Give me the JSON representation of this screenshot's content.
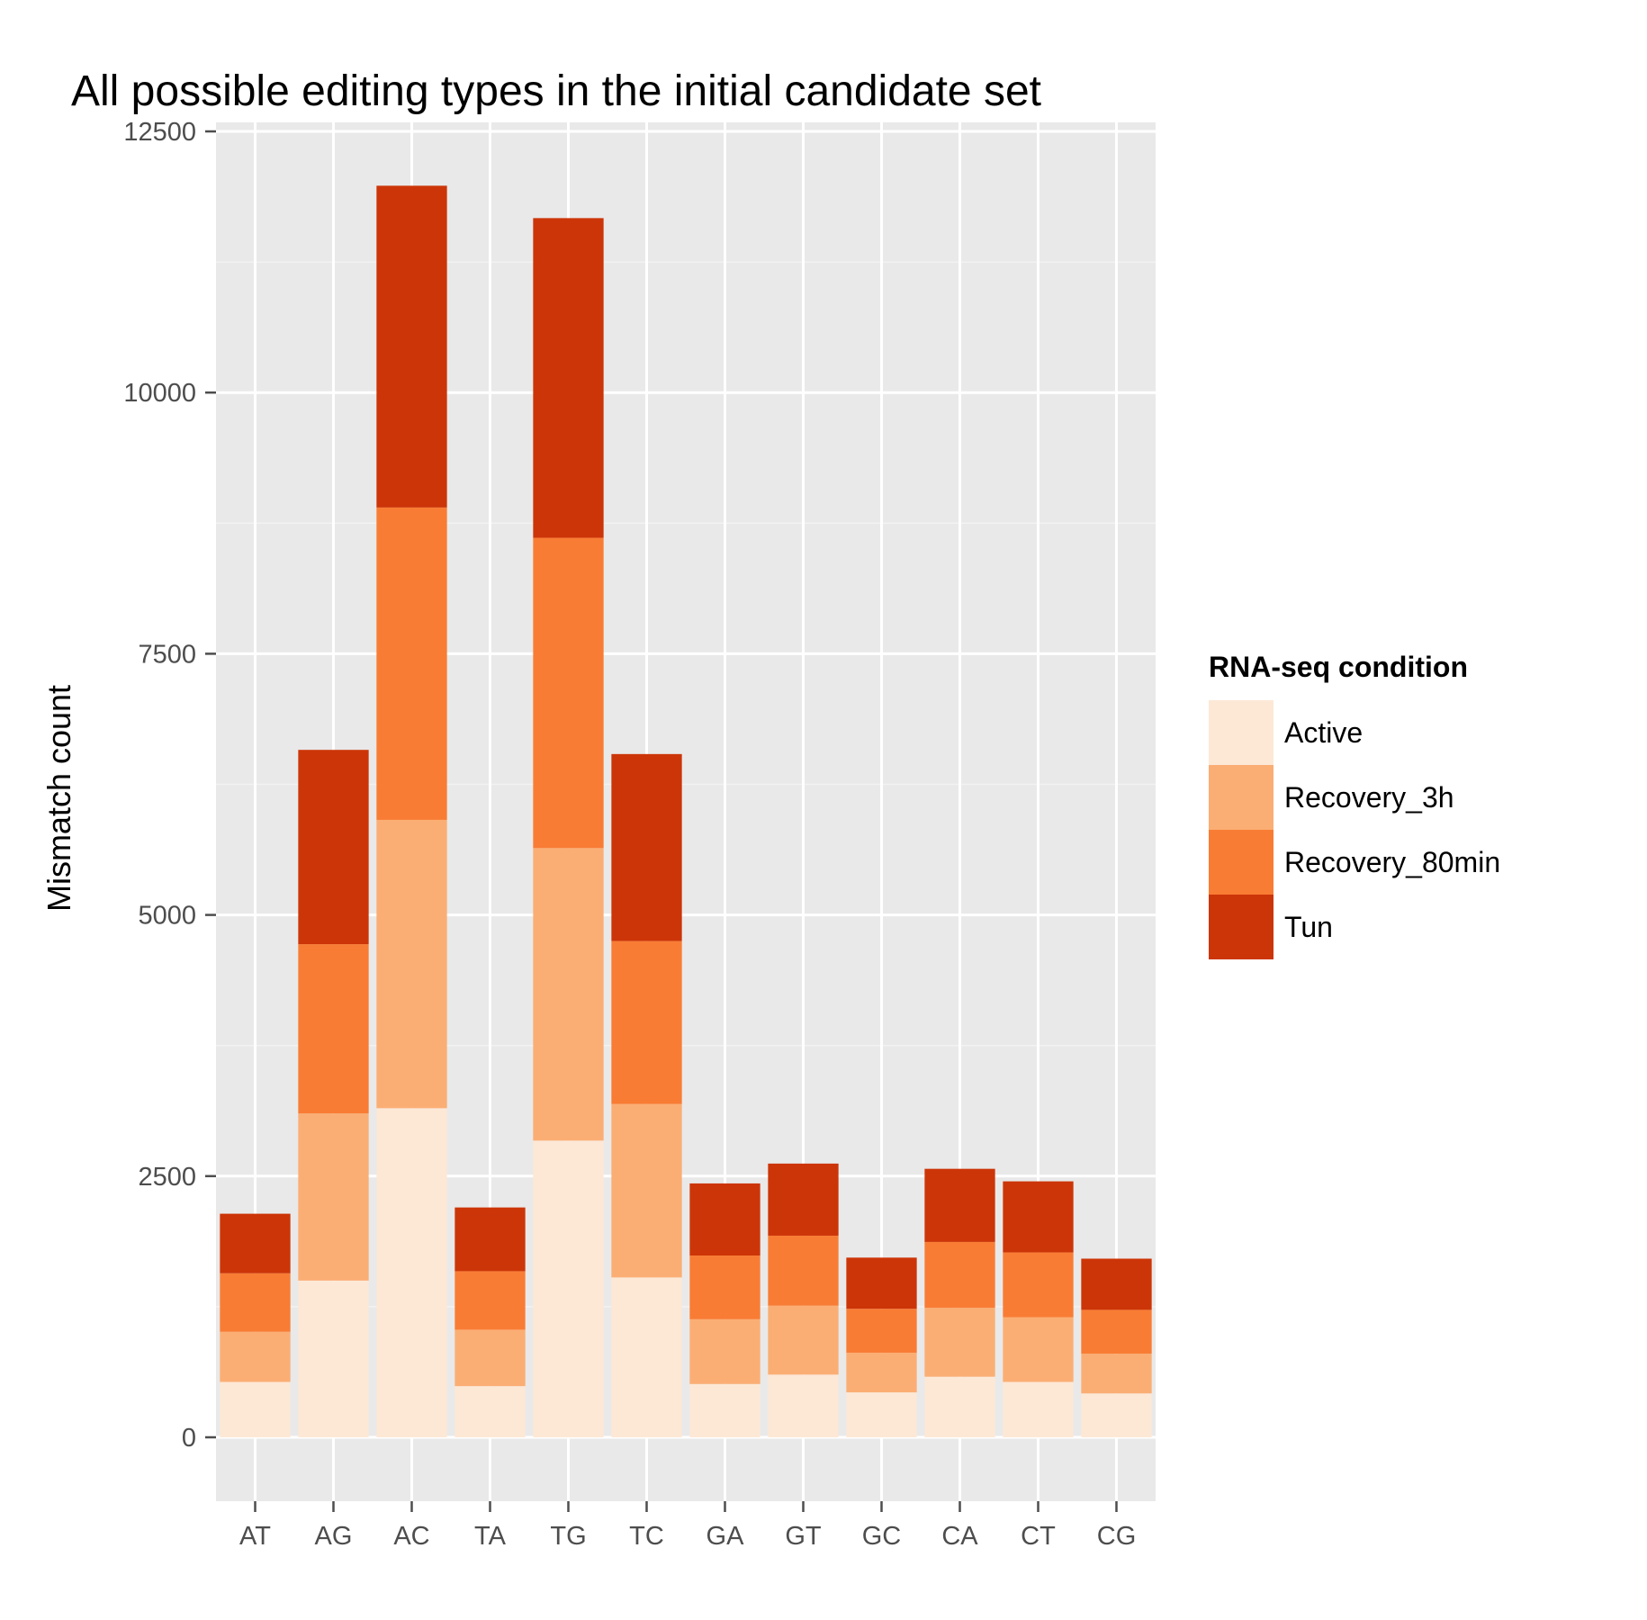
{
  "chart_data": {
    "type": "bar",
    "stacked": true,
    "title": "All possible editing types in the initial candidate set",
    "xlabel": "",
    "ylabel": "Mismatch count",
    "ylim": [
      -580,
      12500
    ],
    "yticks": [
      0,
      2500,
      5000,
      7500,
      10000,
      12500
    ],
    "grid": true,
    "legend_position": "right",
    "legend_title": "RNA-seq condition",
    "categories": [
      "AT",
      "AG",
      "AC",
      "TA",
      "TG",
      "TC",
      "GA",
      "GT",
      "GC",
      "CA",
      "CT",
      "CG"
    ],
    "series": [
      {
        "name": "Active",
        "color": "#fde8d6",
        "values": [
          530,
          1500,
          3150,
          490,
          2840,
          1530,
          510,
          600,
          430,
          580,
          530,
          420
        ]
      },
      {
        "name": "Recovery_3h",
        "color": "#fbae74",
        "values": [
          480,
          1600,
          2760,
          540,
          2800,
          1660,
          620,
          660,
          380,
          660,
          620,
          380
        ]
      },
      {
        "name": "Recovery_80min",
        "color": "#f97c34",
        "values": [
          560,
          1620,
          2990,
          560,
          2970,
          1560,
          610,
          670,
          420,
          630,
          620,
          420
        ]
      },
      {
        "name": "Tun",
        "color": "#cc3508",
        "values": [
          570,
          1860,
          3080,
          610,
          3060,
          1790,
          690,
          690,
          490,
          700,
          680,
          490
        ]
      }
    ]
  }
}
